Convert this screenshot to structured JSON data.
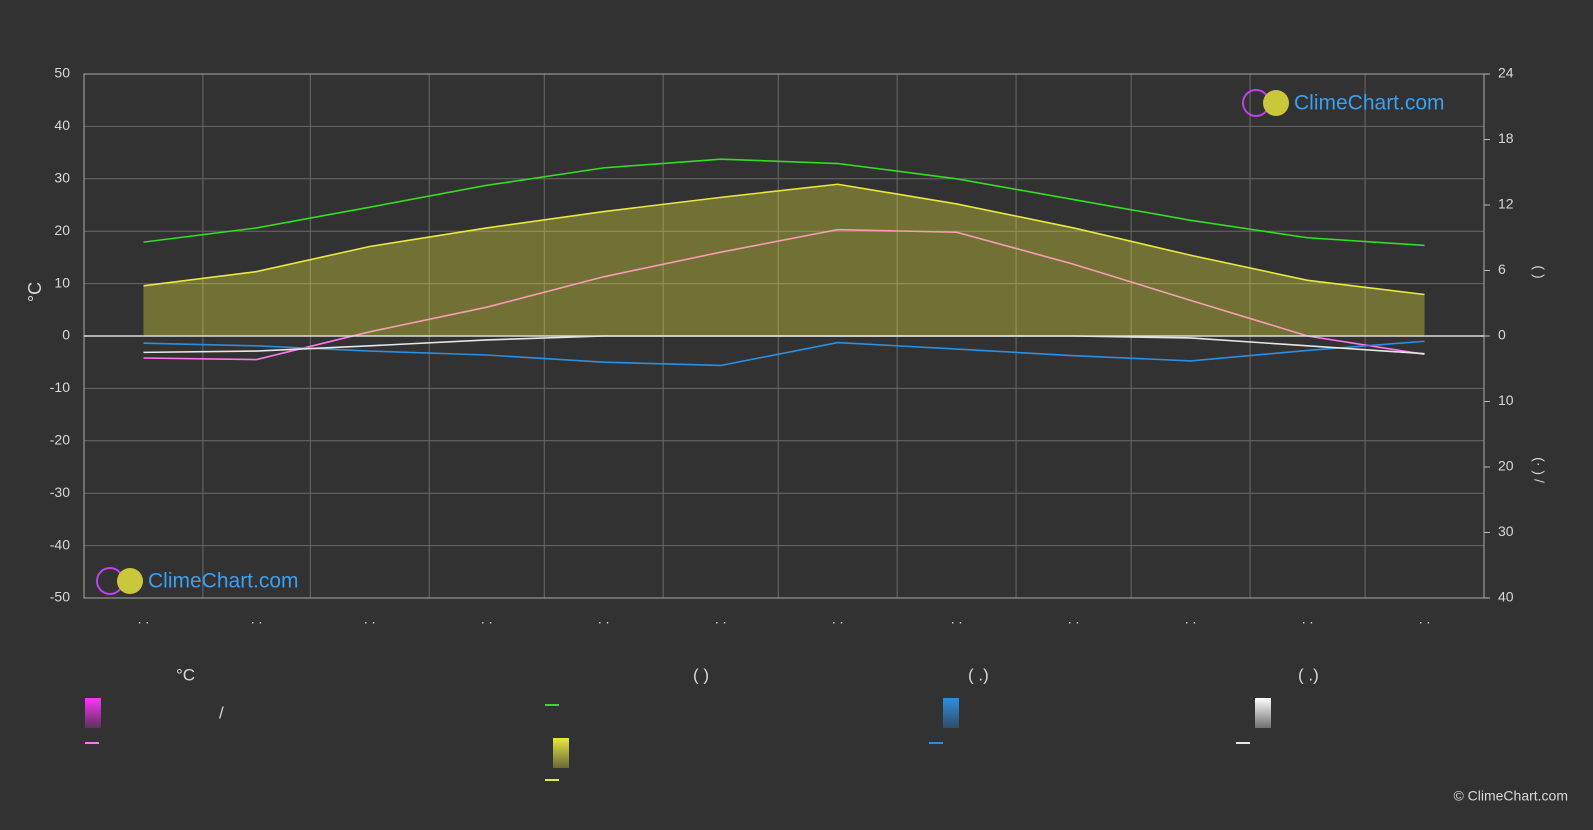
{
  "chart_data": {
    "type": "line",
    "y_label": "°C",
    "y2_label": "(        )",
    "y3_label": "(·  )  /",
    "categories": [
      ". .",
      ". .",
      ". .",
      ". .",
      ". .",
      ". .",
      ". .",
      ". .",
      ". .",
      ". .",
      ". .",
      ". ."
    ],
    "ylim": [
      -50,
      50
    ],
    "yticks": [
      -50,
      -40,
      -30,
      -20,
      -10,
      0,
      10,
      20,
      30,
      40,
      50
    ],
    "y2lim": [
      0,
      24
    ],
    "y2ticks": [
      0,
      6,
      12,
      18,
      24
    ],
    "y3lim": [
      0,
      40
    ],
    "y3ticks": [
      10,
      20,
      30,
      40
    ],
    "grid": true,
    "series": [
      {
        "color": "#ff77ee",
        "values": [
          -4.2,
          -4.5,
          0.8,
          5.5,
          11.3,
          16.0,
          20.3,
          19.8,
          13.7,
          6.8,
          0.0,
          -3.5
        ]
      },
      {
        "color": "#33dd22",
        "axis": "y2",
        "values": [
          8.6,
          9.9,
          11.8,
          13.8,
          15.4,
          16.2,
          15.8,
          14.4,
          12.5,
          10.6,
          9.0,
          8.3
        ]
      },
      {
        "color": "#e8e840",
        "axis": "y2",
        "area": true,
        "values": [
          4.6,
          5.9,
          8.2,
          9.9,
          11.4,
          12.7,
          13.9,
          12.1,
          9.9,
          7.4,
          5.1,
          3.8
        ]
      },
      {
        "color": "#2b8fe0",
        "axis": "y3",
        "values": [
          1.1,
          1.5,
          2.3,
          2.9,
          4.0,
          4.5,
          1.0,
          2.0,
          3.0,
          3.8,
          2.2,
          0.8
        ]
      },
      {
        "color": "#e6e6e6",
        "axis": "y3",
        "values": [
          2.5,
          2.3,
          1.5,
          0.6,
          0.0,
          0.0,
          0.0,
          0.0,
          0.0,
          0.3,
          1.5,
          2.7
        ]
      }
    ],
    "legend_headers": [
      "°C",
      "(          )",
      "(   .)",
      "(   .)"
    ],
    "legend_separator": "/",
    "watermarks": [
      "ClimeChart.com",
      "ClimeChart.com"
    ],
    "copyright": "© ClimeChart.com"
  }
}
